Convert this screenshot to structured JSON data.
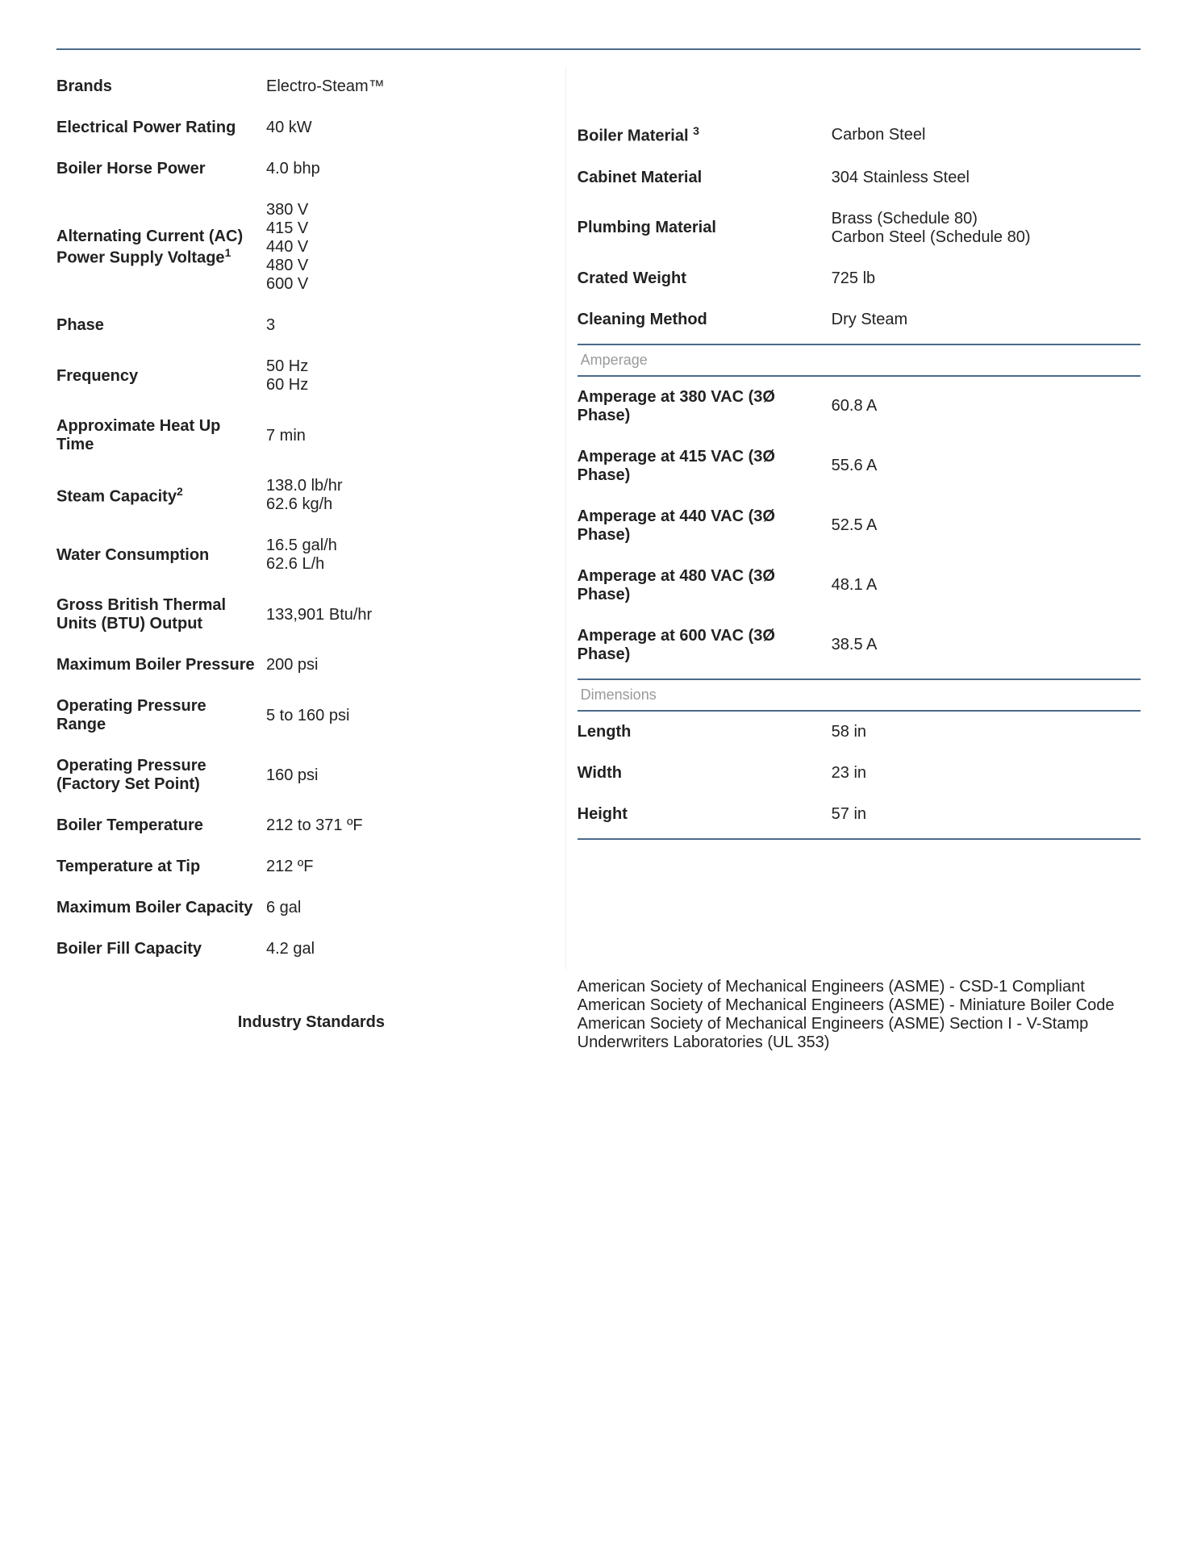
{
  "left": {
    "brands": {
      "label": "Brands",
      "value": "Electro-Steam™"
    },
    "electrical_power_rating": {
      "label": "Electrical Power Rating",
      "value": "40 kW"
    },
    "boiler_horse_power": {
      "label": "Boiler Horse Power",
      "value": "4.0 bhp"
    },
    "ac_supply_voltage": {
      "label": "Alternating Current (AC) Power Supply Voltage",
      "sup": "1",
      "value": "380 V\n415 V\n440 V\n480 V\n600 V"
    },
    "phase": {
      "label": "Phase",
      "value": "3"
    },
    "frequency": {
      "label": "Frequency",
      "value": "50 Hz\n60 Hz"
    },
    "heat_up_time": {
      "label": "Approximate Heat Up Time",
      "value": "7 min"
    },
    "steam_capacity": {
      "label": "Steam Capacity",
      "sup": "2",
      "value": "138.0 lb/hr\n62.6 kg/h"
    },
    "water_consumption": {
      "label": "Water Consumption",
      "value": "16.5 gal/h\n62.6 L/h"
    },
    "btu_output": {
      "label": "Gross British Thermal Units (BTU) Output",
      "value": "133,901 Btu/hr"
    },
    "max_boiler_pressure": {
      "label": "Maximum Boiler Pressure",
      "value": "200 psi"
    },
    "operating_pressure_range": {
      "label": "Operating Pressure Range",
      "value": "5 to 160 psi"
    },
    "operating_pressure_factory": {
      "label": "Operating Pressure (Factory Set Point)",
      "value": "160 psi"
    },
    "boiler_temperature": {
      "label": "Boiler Temperature",
      "value": "212 to 371 ºF"
    },
    "temperature_at_tip": {
      "label": "Temperature at Tip",
      "value": "212 ºF"
    },
    "max_boiler_capacity": {
      "label": "Maximum Boiler Capacity",
      "value": "6 gal"
    },
    "boiler_fill_capacity": {
      "label": "Boiler Fill Capacity",
      "value": "4.2 gal"
    }
  },
  "right": {
    "boiler_material": {
      "label": "Boiler Material ",
      "sup": "3",
      "value": "Carbon Steel"
    },
    "cabinet_material": {
      "label": "Cabinet Material",
      "value": "304 Stainless Steel"
    },
    "plumbing_material": {
      "label": "Plumbing Material",
      "value": "Brass (Schedule 80)\nCarbon Steel (Schedule 80)"
    },
    "crated_weight": {
      "label": "Crated Weight",
      "value": "725 lb"
    },
    "cleaning_method": {
      "label": "Cleaning Method",
      "value": "Dry Steam"
    },
    "amperage_heading": "Amperage",
    "amp_380": {
      "label": "Amperage at 380 VAC (3Ø Phase)",
      "value": "60.8 A"
    },
    "amp_415": {
      "label": "Amperage at 415 VAC (3Ø Phase)",
      "value": "55.6 A"
    },
    "amp_440": {
      "label": "Amperage at 440 VAC (3Ø Phase)",
      "value": "52.5 A"
    },
    "amp_480": {
      "label": "Amperage at 480 VAC (3Ø Phase)",
      "value": "48.1 A"
    },
    "amp_600": {
      "label": "Amperage at 600 VAC (3Ø Phase)",
      "value": "38.5 A"
    },
    "dimensions_heading": "Dimensions",
    "length": {
      "label": "Length",
      "value": "58 in"
    },
    "width": {
      "label": "Width",
      "value": "23 in"
    },
    "height": {
      "label": "Height",
      "value": "57 in"
    }
  },
  "bottom": {
    "industry_standards": {
      "label": "Industry Standards",
      "value": "American Society of Mechanical Engineers (ASME) - CSD-1 Compliant\nAmerican Society of Mechanical Engineers (ASME) - Miniature Boiler Code\nAmerican Society of Mechanical Engineers (ASME) Section I - V-Stamp\nUnderwriters Laboratories (UL 353)"
    }
  }
}
